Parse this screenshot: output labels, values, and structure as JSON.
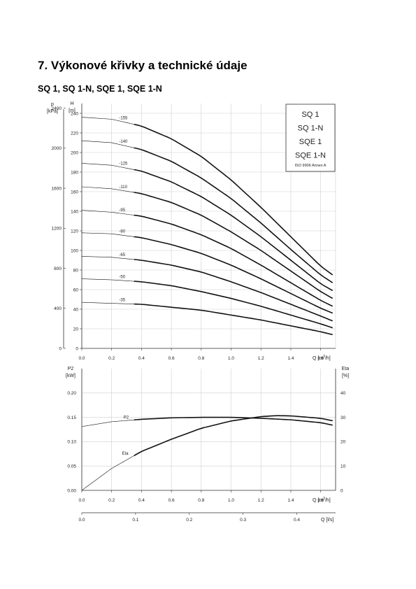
{
  "page": {
    "section_title": "7. Výkonové křivky a technické údaje",
    "subtitle": "SQ 1, SQ 1-N, SQE 1, SQE 1-N"
  },
  "chart_data": [
    {
      "type": "line",
      "legend_box": [
        "SQ 1",
        "SQ 1-N",
        "SQE 1",
        "SQE 1-N",
        "ISO 9906 Annex A"
      ],
      "xlabel": "Q [m³/h]",
      "xlabel_parts": [
        "Q [m",
        "3",
        "/h]"
      ],
      "xlim": [
        0,
        1.7
      ],
      "xticks": [
        "0.0",
        "0.2",
        "0.4",
        "0.6",
        "0.8",
        "1.0",
        "1.2",
        "1.4",
        "1.6"
      ],
      "ylabel_left": [
        "p",
        "[kPa]"
      ],
      "yticks_left": [
        "0",
        "400",
        "800",
        "1200",
        "1600",
        "2000",
        "2400"
      ],
      "yticks_left_values": [
        0,
        400,
        800,
        1200,
        1600,
        2000,
        2400
      ],
      "ylabel_right": [
        "H",
        "[m]"
      ],
      "ylim": [
        0,
        250
      ],
      "yticks_right": [
        "0",
        "20",
        "40",
        "60",
        "80",
        "100",
        "120",
        "140",
        "160",
        "180",
        "200",
        "220",
        "240"
      ],
      "grid": true,
      "series": [
        {
          "name": "-155",
          "x": [
            0,
            0.2,
            0.4,
            0.6,
            0.8,
            1.0,
            1.2,
            1.4,
            1.6,
            1.68
          ],
          "y": [
            236,
            234,
            227,
            214,
            196,
            172,
            144,
            114,
            84,
            75
          ]
        },
        {
          "name": "-140",
          "x": [
            0,
            0.2,
            0.4,
            0.6,
            0.8,
            1.0,
            1.2,
            1.4,
            1.6,
            1.68
          ],
          "y": [
            212,
            210,
            203,
            191,
            174,
            153,
            128,
            101,
            75,
            67
          ]
        },
        {
          "name": "-125",
          "x": [
            0,
            0.2,
            0.4,
            0.6,
            0.8,
            1.0,
            1.2,
            1.4,
            1.6,
            1.68
          ],
          "y": [
            189,
            187,
            181,
            170,
            155,
            136,
            114,
            90,
            66,
            59
          ]
        },
        {
          "name": "-110",
          "x": [
            0,
            0.2,
            0.4,
            0.6,
            0.8,
            1.0,
            1.2,
            1.4,
            1.6,
            1.68
          ],
          "y": [
            165,
            163,
            158,
            149,
            136,
            119,
            100,
            79,
            58,
            51
          ]
        },
        {
          "name": "-95",
          "x": [
            0,
            0.2,
            0.4,
            0.6,
            0.8,
            1.0,
            1.2,
            1.4,
            1.6,
            1.68
          ],
          "y": [
            141,
            139,
            135,
            127,
            116,
            102,
            85,
            67,
            49,
            43
          ]
        },
        {
          "name": "-80",
          "x": [
            0,
            0.2,
            0.4,
            0.6,
            0.8,
            1.0,
            1.2,
            1.4,
            1.6,
            1.68
          ],
          "y": [
            118,
            117,
            113,
            106,
            97,
            85,
            71,
            56,
            41,
            36
          ]
        },
        {
          "name": "-65",
          "x": [
            0,
            0.2,
            0.4,
            0.6,
            0.8,
            1.0,
            1.2,
            1.4,
            1.6,
            1.68
          ],
          "y": [
            94,
            93,
            90,
            85,
            78,
            68,
            57,
            45,
            33,
            28
          ]
        },
        {
          "name": "-50",
          "x": [
            0,
            0.2,
            0.4,
            0.6,
            0.8,
            1.0,
            1.2,
            1.4,
            1.6,
            1.68
          ],
          "y": [
            71,
            70,
            68,
            64,
            58,
            51,
            43,
            34,
            25,
            21
          ]
        },
        {
          "name": "-35",
          "x": [
            0,
            0.2,
            0.4,
            0.6,
            0.8,
            1.0,
            1.2,
            1.4,
            1.6,
            1.68
          ],
          "y": [
            47,
            46,
            45,
            42,
            39,
            34,
            29,
            23,
            17,
            14
          ]
        }
      ]
    },
    {
      "type": "line",
      "xlabel": "Q [m³/h]",
      "xlabel_parts": [
        "Q [m",
        "3",
        "/h]"
      ],
      "xlim": [
        0,
        1.7
      ],
      "xticks": [
        "0.0",
        "0.2",
        "0.4",
        "0.6",
        "0.8",
        "1.0",
        "1.2",
        "1.4",
        "1.6"
      ],
      "ylabel_left": [
        "P2",
        "[kW]"
      ],
      "ylim_left": [
        0,
        0.25
      ],
      "yticks_left": [
        "0.00",
        "0.05",
        "0.10",
        "0.15",
        "0.20"
      ],
      "ylabel_right": [
        "Eta",
        "[%]"
      ],
      "ylim_right": [
        0,
        50
      ],
      "yticks_right": [
        "0",
        "10",
        "20",
        "30",
        "40"
      ],
      "grid": true,
      "series": [
        {
          "name": "P2",
          "axis": "left",
          "x": [
            0,
            0.2,
            0.4,
            0.6,
            0.8,
            1.0,
            1.2,
            1.4,
            1.6,
            1.68
          ],
          "y": [
            0.131,
            0.141,
            0.146,
            0.149,
            0.15,
            0.15,
            0.148,
            0.145,
            0.139,
            0.134
          ]
        },
        {
          "name": "Eta",
          "axis": "right",
          "x": [
            0,
            0.2,
            0.4,
            0.6,
            0.8,
            1.0,
            1.2,
            1.3,
            1.4,
            1.6,
            1.68
          ],
          "y": [
            0,
            9,
            16,
            21,
            25.5,
            28.5,
            30.3,
            30.7,
            30.6,
            29.6,
            28.6
          ]
        }
      ]
    },
    {
      "type": "axis",
      "xlabel": "Q [l/s]",
      "xlim": [
        0,
        0.4722
      ],
      "xticks": [
        "0.0",
        "0.1",
        "0.2",
        "0.3",
        "0.4"
      ],
      "xtick_values": [
        0,
        0.1,
        0.2,
        0.3,
        0.4
      ]
    }
  ]
}
